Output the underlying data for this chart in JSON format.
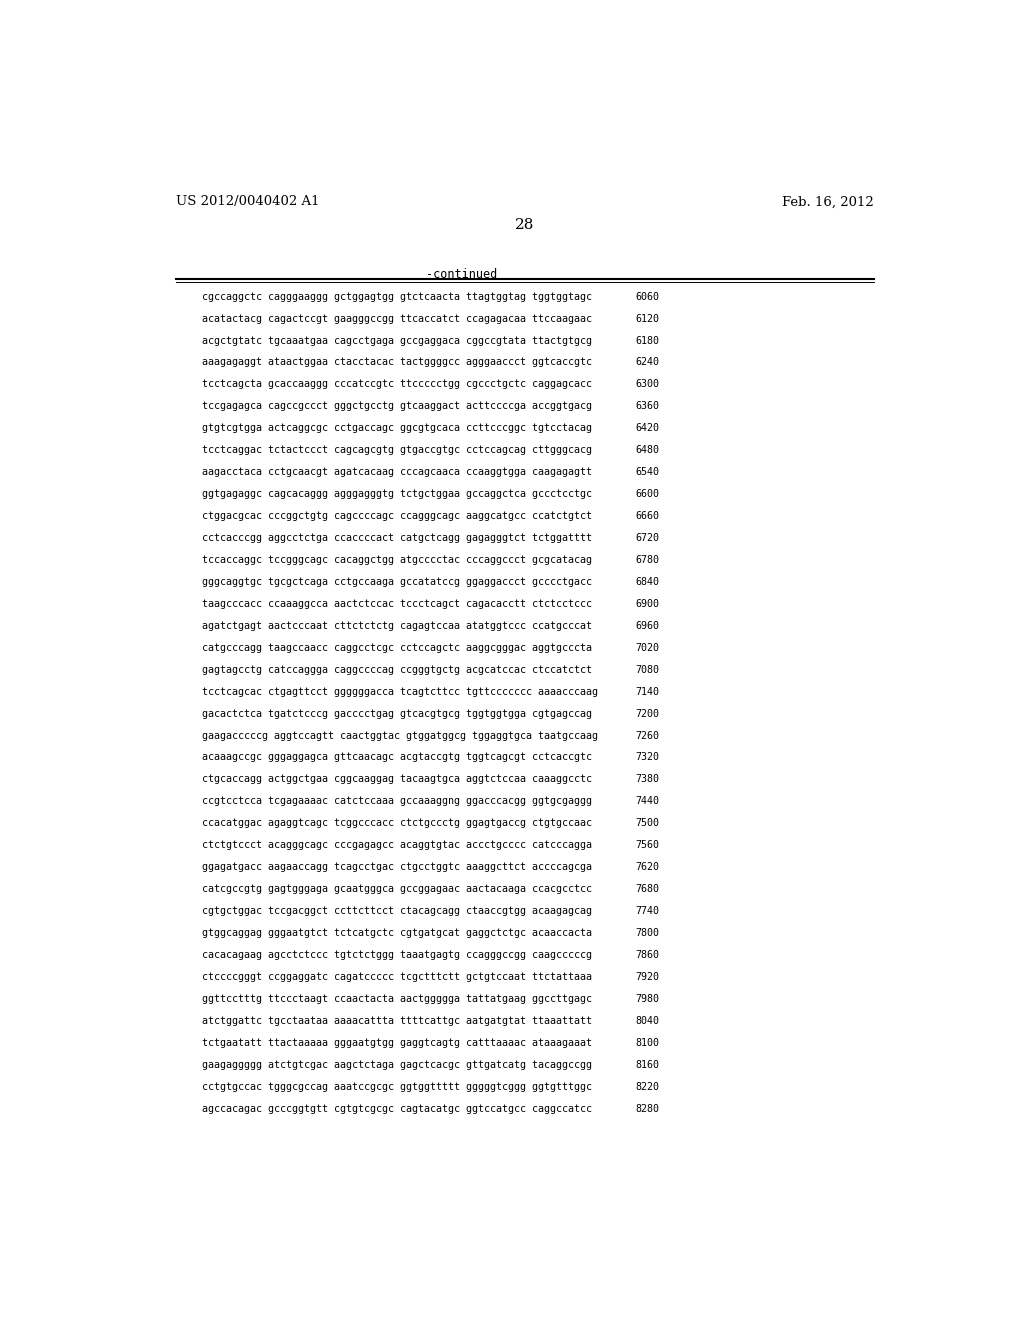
{
  "header_left": "US 2012/0040402 A1",
  "header_right": "Feb. 16, 2012",
  "page_number": "28",
  "continued_label": "-continued",
  "bg_color": "#ffffff",
  "text_color": "#000000",
  "font_size_header": 9.5,
  "font_size_page": 11,
  "font_size_body": 7.2,
  "font_size_continued": 8.5,
  "lines": [
    [
      "cgccaggctc",
      "cagggaaggg",
      "gctggagtgg",
      "gtctcaacta",
      "ttagtggtag",
      "tggtggtagc",
      "6060"
    ],
    [
      "acatactacg",
      "cagactccgt",
      "gaagggccgg",
      "ttcaccatct",
      "ccagagacaa",
      "ttccaagaac",
      "6120"
    ],
    [
      "acgctgtatc",
      "tgcaaatgaa",
      "cagcctgaga",
      "gccgaggaca",
      "cggccgtata",
      "ttactgtgcg",
      "6180"
    ],
    [
      "aaagagaggt",
      "ataactggaa",
      "ctacctacac",
      "tactggggcc",
      "agggaaccct",
      "ggtcaccgtc",
      "6240"
    ],
    [
      "tcctcagcta",
      "gcaccaaggg",
      "cccatccgtc",
      "ttccccctgg",
      "cgccctgctc",
      "caggagcacc",
      "6300"
    ],
    [
      "tccgagagca",
      "cagccgccct",
      "gggctgcctg",
      "gtcaaggact",
      "acttccccga",
      "accggtgacg",
      "6360"
    ],
    [
      "gtgtcgtgga",
      "actcaggcgc",
      "cctgaccagc",
      "ggcgtgcaca",
      "ccttcccggc",
      "tgtcctacag",
      "6420"
    ],
    [
      "tcctcaggac",
      "tctactccct",
      "cagcagcgtg",
      "gtgaccgtgc",
      "cctccagcag",
      "cttgggcacg",
      "6480"
    ],
    [
      "aagacctaca",
      "cctgcaacgt",
      "agatcacaag",
      "cccagcaaca",
      "ccaaggtgga",
      "caagagagtt",
      "6540"
    ],
    [
      "ggtgagaggc",
      "cagcacaggg",
      "agggagggtg",
      "tctgctggaa",
      "gccaggctca",
      "gccctcctgc",
      "6600"
    ],
    [
      "ctggacgcac",
      "cccggctgtg",
      "cagccccagc",
      "ccagggcagc",
      "aaggcatgcc",
      "ccatctgtct",
      "6660"
    ],
    [
      "cctcacccgg",
      "aggcctctga",
      "ccaccccact",
      "catgctcagg",
      "gagagggtct",
      "tctggatttt",
      "6720"
    ],
    [
      "tccaccaggc",
      "tccgggcagc",
      "cacaggctgg",
      "atgcccctac",
      "cccaggccct",
      "gcgcatacag",
      "6780"
    ],
    [
      "gggcaggtgc",
      "tgcgctcaga",
      "cctgccaaga",
      "gccatatccg",
      "ggaggaccct",
      "gcccctgacc",
      "6840"
    ],
    [
      "taagcccacc",
      "ccaaaggcca",
      "aactctccac",
      "tccctcagct",
      "cagacacctt",
      "ctctcctccc",
      "6900"
    ],
    [
      "agatctgagt",
      "aactcccaat",
      "cttctctctg",
      "cagagtccaa",
      "atatggtccc",
      "ccatgcccat",
      "6960"
    ],
    [
      "catgcccagg",
      "taagccaacc",
      "caggcctcgc",
      "cctccagctc",
      "aaggcgggac",
      "aggtgcccta",
      "7020"
    ],
    [
      "gagtagcctg",
      "catccaggga",
      "caggccccag",
      "ccgggtgctg",
      "acgcatccac",
      "ctccatctct",
      "7080"
    ],
    [
      "tcctcagcac",
      "ctgagttcct",
      "ggggggacca",
      "tcagtcttcc",
      "tgttccccccc",
      "aaaacccaag",
      "7140"
    ],
    [
      "gacactctca",
      "tgatctcccg",
      "gacccctgag",
      "gtcacgtgcg",
      "tggtggtgga",
      "cgtgagccag",
      "7200"
    ],
    [
      "gaagacccccg",
      "aggtccagtt",
      "caactggtac",
      "gtggatggcg",
      "tggaggtgca",
      "taatgccaag",
      "7260"
    ],
    [
      "acaaagccgc",
      "gggaggagca",
      "gttcaacagc",
      "acgtaccgtg",
      "tggtcagcgt",
      "cctcaccgtc",
      "7320"
    ],
    [
      "ctgcaccagg",
      "actggctgaa",
      "cggcaaggag",
      "tacaagtgca",
      "aggtctccaa",
      "caaaggcctc",
      "7380"
    ],
    [
      "ccgtcctcca",
      "tcgagaaaac",
      "catctccaaa",
      "gccaaaggng",
      "ggacccacgg",
      "ggtgcgaggg",
      "7440"
    ],
    [
      "ccacatggac",
      "agaggtcagc",
      "tcggcccacc",
      "ctctgccctg",
      "ggagtgaccg",
      "ctgtgccaac",
      "7500"
    ],
    [
      "ctctgtccct",
      "acagggcagc",
      "cccgagagcc",
      "acaggtgtac",
      "accctgcccc",
      "catcccagga",
      "7560"
    ],
    [
      "ggagatgacc",
      "aagaaccagg",
      "tcagcctgac",
      "ctgcctggtc",
      "aaaggcttct",
      "accccagcga",
      "7620"
    ],
    [
      "catcgccgtg",
      "gagtgggaga",
      "gcaatgggca",
      "gccggagaac",
      "aactacaaga",
      "ccacgcctcc",
      "7680"
    ],
    [
      "cgtgctggac",
      "tccgacggct",
      "ccttcttcct",
      "ctacagcagg",
      "ctaaccgtgg",
      "acaagagcag",
      "7740"
    ],
    [
      "gtggcaggag",
      "gggaatgtct",
      "tctcatgctc",
      "cgtgatgcat",
      "gaggctctgc",
      "acaaccacta",
      "7800"
    ],
    [
      "cacacagaag",
      "agcctctccc",
      "tgtctctggg",
      "taaatgagtg",
      "ccagggccgg",
      "caagcccccg",
      "7860"
    ],
    [
      "ctccccgggt",
      "ccggaggatc",
      "cagatccccc",
      "tcgctttctt",
      "gctgtccaat",
      "ttctattaaa",
      "7920"
    ],
    [
      "ggttcctttg",
      "ttccctaagt",
      "ccaactacta",
      "aactggggga",
      "tattatgaag",
      "ggccttgagc",
      "7980"
    ],
    [
      "atctggattc",
      "tgcctaataa",
      "aaaacattta",
      "ttttcattgc",
      "aatgatgtat",
      "ttaaattatt",
      "8040"
    ],
    [
      "tctgaatatt",
      "ttactaaaaa",
      "gggaatgtgg",
      "gaggtcagtg",
      "catttaaaac",
      "ataaagaaat",
      "8100"
    ],
    [
      "gaagaggggg",
      "atctgtcgac",
      "aagctctaga",
      "gagctcacgc",
      "gttgatcatg",
      "tacaggccgg",
      "8160"
    ],
    [
      "cctgtgccac",
      "tgggcgccag",
      "aaatccgcgc",
      "ggtggttttt",
      "gggggtcggg",
      "ggtgtttggc",
      "8220"
    ],
    [
      "agccacagac",
      "gcccggtgtt",
      "cgtgtcgcgc",
      "cagtacatgc",
      "ggtccatgcc",
      "caggccatcc",
      "8280"
    ]
  ]
}
